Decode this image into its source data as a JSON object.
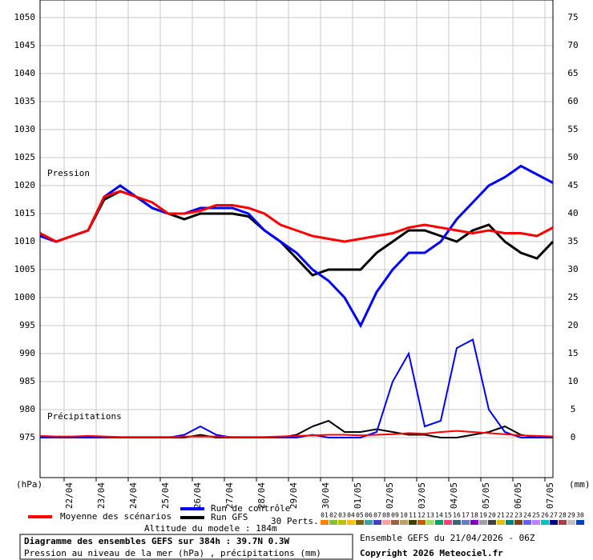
{
  "chart_data": {
    "type": "line",
    "title": "Diagramme des ensembles GEFS sur 384h : 39.7N 0.3W",
    "subtitle": "Pression au niveau de la mer (hPa) , précipitations (mm)",
    "run_info": "Ensemble GEFS du 21/04/2026 - 06Z",
    "copyright": "Copyright 2026 Meteociel.fr",
    "altitude": "Altitude du modele : 184m",
    "pressure_label": "Pression",
    "precip_label": "Précipitations",
    "y_axis_label": "(hPa)",
    "y2_axis_label": "(mm)",
    "perturbations_label": "30 Perts.",
    "x": [
      0,
      12,
      24,
      36,
      48,
      60,
      72,
      84,
      96,
      108,
      120,
      132,
      144,
      156,
      168,
      180,
      192,
      204,
      216,
      228,
      240,
      252,
      264,
      276,
      288,
      300,
      312,
      324,
      336,
      348,
      360,
      372,
      384
    ],
    "xlim": [
      0,
      384
    ],
    "xticks": [
      {
        "value": 18,
        "label": "22/04"
      },
      {
        "value": 42,
        "label": "23/04"
      },
      {
        "value": 66,
        "label": "24/04"
      },
      {
        "value": 90,
        "label": "25/04"
      },
      {
        "value": 114,
        "label": "26/04"
      },
      {
        "value": 138,
        "label": "27/04"
      },
      {
        "value": 162,
        "label": "28/04"
      },
      {
        "value": 186,
        "label": "29/04"
      },
      {
        "value": 210,
        "label": "30/04"
      },
      {
        "value": 234,
        "label": "01/05"
      },
      {
        "value": 258,
        "label": "02/05"
      },
      {
        "value": 282,
        "label": "03/05"
      },
      {
        "value": 306,
        "label": "04/05"
      },
      {
        "value": 330,
        "label": "05/05"
      },
      {
        "value": 354,
        "label": "06/05"
      },
      {
        "value": 378,
        "label": "07/05"
      }
    ],
    "ylim": [
      975,
      1050
    ],
    "yticks": [
      975,
      980,
      985,
      990,
      995,
      1000,
      1005,
      1010,
      1015,
      1020,
      1025,
      1030,
      1035,
      1040,
      1045,
      1050
    ],
    "y2lim": [
      0,
      75
    ],
    "y2ticks": [
      0,
      5,
      10,
      15,
      20,
      25,
      30,
      35,
      40,
      45,
      50,
      55,
      60,
      65,
      70,
      75
    ],
    "grid": true,
    "series": [
      {
        "name": "Moyenne des scénarios",
        "color": "#ff0000",
        "values": [
          1011.5,
          1010,
          1011,
          1012,
          1018,
          1019,
          1018,
          1017,
          1015,
          1015,
          1015.5,
          1016.5,
          1016.5,
          1016,
          1015,
          1013,
          1012,
          1011,
          1010.5,
          1010,
          1010.5,
          1011,
          1011.5,
          1012.5,
          1013,
          1012.5,
          1012,
          1011.5,
          1012,
          1011.5,
          1011.5,
          1011,
          1012.5
        ],
        "precip": [
          0.3,
          0.2,
          0.2,
          0.3,
          0.2,
          0.1,
          0.1,
          0.1,
          0.1,
          0.2,
          0.2,
          0.2,
          0.1,
          0.1,
          0.1,
          0.2,
          0.3,
          0.4,
          0.5,
          0.5,
          0.4,
          0.5,
          0.6,
          0.8,
          0.7,
          1,
          1.2,
          1,
          0.8,
          0.6,
          0.4,
          0.3,
          0.2
        ]
      },
      {
        "name": "Run de contrôle",
        "color": "#0000ff",
        "values": [
          1011,
          1010,
          1011,
          1012,
          1018,
          1020,
          1018,
          1016,
          1015,
          1015,
          1016,
          1016,
          1016,
          1015,
          1012,
          1010,
          1008,
          1005,
          1003,
          1000,
          995,
          1001,
          1005,
          1008,
          1008,
          1010,
          1014,
          1017,
          1020,
          1021.5,
          1023.5,
          1022,
          1020.5
        ],
        "precip": [
          0,
          0,
          0,
          0,
          0,
          0,
          0,
          0,
          0,
          0.5,
          2,
          0.5,
          0,
          0,
          0,
          0,
          0,
          0.5,
          0,
          0,
          0,
          1,
          10,
          15,
          2,
          3,
          16,
          17.5,
          5,
          1,
          0,
          0,
          0
        ]
      },
      {
        "name": "Run GFS",
        "color": "#000000",
        "values": [
          1011,
          1010,
          1011,
          1012,
          1017.5,
          1019,
          1018,
          1016,
          1015,
          1014,
          1015,
          1015,
          1015,
          1014.5,
          1012,
          1010,
          1007,
          1004,
          1005,
          1005,
          1005,
          1008,
          1010,
          1012,
          1012,
          1011,
          1010,
          1012,
          1013,
          1010,
          1008,
          1007,
          1010
        ],
        "precip": [
          0,
          0,
          0,
          0,
          0,
          0,
          0,
          0,
          0,
          0,
          0.5,
          0,
          0,
          0,
          0,
          0,
          0.5,
          2,
          3,
          1,
          1,
          1.5,
          1,
          0.5,
          0.5,
          0,
          0,
          0.5,
          1,
          2,
          0.5,
          0,
          0
        ]
      }
    ],
    "perturbations": [
      {
        "label": "01",
        "color": "#ff8000"
      },
      {
        "label": "02",
        "color": "#80c040"
      },
      {
        "label": "03",
        "color": "#c0c000"
      },
      {
        "label": "04",
        "color": "#ffc000"
      },
      {
        "label": "05",
        "color": "#806000"
      },
      {
        "label": "06",
        "color": "#40a0a0"
      },
      {
        "label": "07",
        "color": "#4040c0"
      },
      {
        "label": "08",
        "color": "#ffa0a0"
      },
      {
        "label": "09",
        "color": "#a06040"
      },
      {
        "label": "10",
        "color": "#c0a060"
      },
      {
        "label": "11",
        "color": "#404000"
      },
      {
        "label": "12",
        "color": "#c06000"
      },
      {
        "label": "13",
        "color": "#a0e060"
      },
      {
        "label": "14",
        "color": "#00a060"
      },
      {
        "label": "15",
        "color": "#ff4080"
      },
      {
        "label": "16",
        "color": "#406080"
      },
      {
        "label": "17",
        "color": "#6080c0"
      },
      {
        "label": "18",
        "color": "#8000c0"
      },
      {
        "label": "19",
        "color": "#a0a0a0"
      },
      {
        "label": "20",
        "color": "#404040"
      },
      {
        "label": "21",
        "color": "#e0c000"
      },
      {
        "label": "22",
        "color": "#008080"
      },
      {
        "label": "23",
        "color": "#804000"
      },
      {
        "label": "24",
        "color": "#6060ff"
      },
      {
        "label": "25",
        "color": "#c080ff"
      },
      {
        "label": "26",
        "color": "#00c0c0"
      },
      {
        "label": "27",
        "color": "#000080"
      },
      {
        "label": "28",
        "color": "#a04040"
      },
      {
        "label": "29",
        "color": "#c0c0c0"
      },
      {
        "label": "30",
        "color": "#0040c0"
      }
    ]
  }
}
